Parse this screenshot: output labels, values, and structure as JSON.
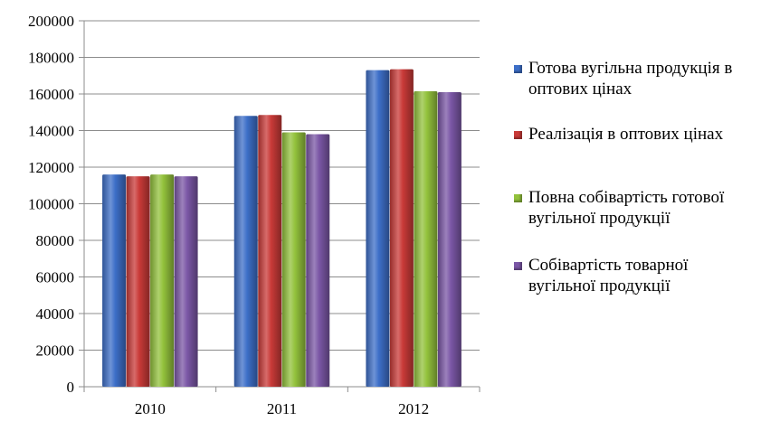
{
  "chart_data": {
    "type": "bar",
    "categories": [
      "2010",
      "2011",
      "2012"
    ],
    "series": [
      {
        "name": "Готова вугільна продукція в оптових цінах",
        "color": "#3d6fc8",
        "values": [
          116000,
          148000,
          173000
        ]
      },
      {
        "name": "Реалізація в оптових цінах",
        "color": "#c93a38",
        "values": [
          115000,
          148500,
          173500
        ]
      },
      {
        "name": "Повна собівартість готової вугільної продукції",
        "color": "#93c23c",
        "values": [
          116000,
          139000,
          161500
        ]
      },
      {
        "name": "Собівартість товарної вугільної продукції",
        "color": "#7b57a6",
        "values": [
          115000,
          138000,
          161000
        ]
      }
    ],
    "ylim": [
      0,
      200000
    ],
    "yticks": [
      0,
      20000,
      40000,
      60000,
      80000,
      100000,
      120000,
      140000,
      160000,
      180000,
      200000
    ],
    "title": "",
    "xlabel": "",
    "ylabel": "",
    "grid": true,
    "legend_position": "right"
  }
}
